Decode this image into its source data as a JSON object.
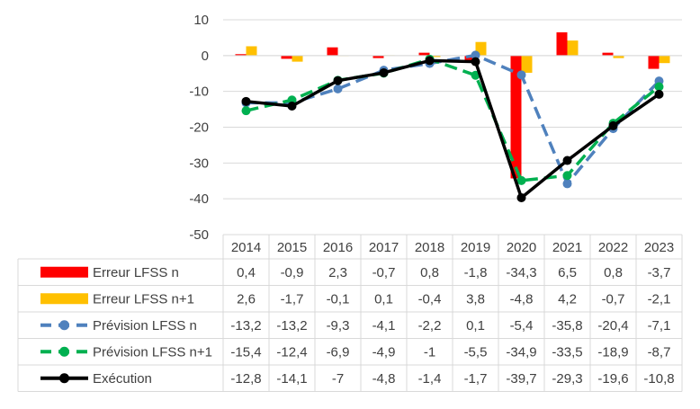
{
  "chart_data": {
    "type": "bar+line with data table",
    "categories": [
      "2014",
      "2015",
      "2016",
      "2017",
      "2018",
      "2019",
      "2020",
      "2021",
      "2022",
      "2023"
    ],
    "ylim": [
      -50,
      10
    ],
    "yticks": [
      10,
      0,
      -10,
      -20,
      -30,
      -40,
      -50
    ],
    "grid": true,
    "legend": "data-table",
    "series": [
      {
        "name": "Erreur LFSS n",
        "kind": "bar",
        "color": "#ff0000",
        "values": [
          0.4,
          -0.9,
          2.3,
          -0.7,
          0.8,
          -1.8,
          -34.3,
          6.5,
          0.8,
          -3.7
        ],
        "labels": [
          "0,4",
          "-0,9",
          "2,3",
          "-0,7",
          "0,8",
          "-1,8",
          "-34,3",
          "6,5",
          "0,8",
          "-3,7"
        ]
      },
      {
        "name": "Erreur LFSS n+1",
        "kind": "bar",
        "color": "#ffc000",
        "values": [
          2.6,
          -1.7,
          -0.1,
          0.1,
          -0.4,
          3.8,
          -4.8,
          4.2,
          -0.7,
          -2.1
        ],
        "labels": [
          "2,6",
          "-1,7",
          "-0,1",
          "0,1",
          "-0,4",
          "3,8",
          "-4,8",
          "4,2",
          "-0,7",
          "-2,1"
        ]
      },
      {
        "name": "Prévision LFSS n",
        "kind": "line-dashed",
        "color": "#4f81bd",
        "values": [
          -13.2,
          -13.2,
          -9.3,
          -4.1,
          -2.2,
          0.1,
          -5.4,
          -35.8,
          -20.4,
          -7.1
        ],
        "labels": [
          "-13,2",
          "-13,2",
          "-9,3",
          "-4,1",
          "-2,2",
          "0,1",
          "-5,4",
          "-35,8",
          "-20,4",
          "-7,1"
        ]
      },
      {
        "name": "Prévision LFSS n+1",
        "kind": "line-dashed",
        "color": "#00b050",
        "values": [
          -15.4,
          -12.4,
          -6.9,
          -4.9,
          -1,
          -5.5,
          -34.9,
          -33.5,
          -18.9,
          -8.7
        ],
        "labels": [
          "-15,4",
          "-12,4",
          "-6,9",
          "-4,9",
          "-1",
          "-5,5",
          "-34,9",
          "-33,5",
          "-18,9",
          "-8,7"
        ]
      },
      {
        "name": "Exécution",
        "kind": "line",
        "color": "#000000",
        "values": [
          -12.8,
          -14.1,
          -7,
          -4.8,
          -1.4,
          -1.7,
          -39.7,
          -29.3,
          -19.6,
          -10.8
        ],
        "labels": [
          "-12,8",
          "-14,1",
          "-7",
          "-4,8",
          "-1,4",
          "-1,7",
          "-39,7",
          "-29,3",
          "-19,6",
          "-10,8"
        ]
      }
    ]
  }
}
